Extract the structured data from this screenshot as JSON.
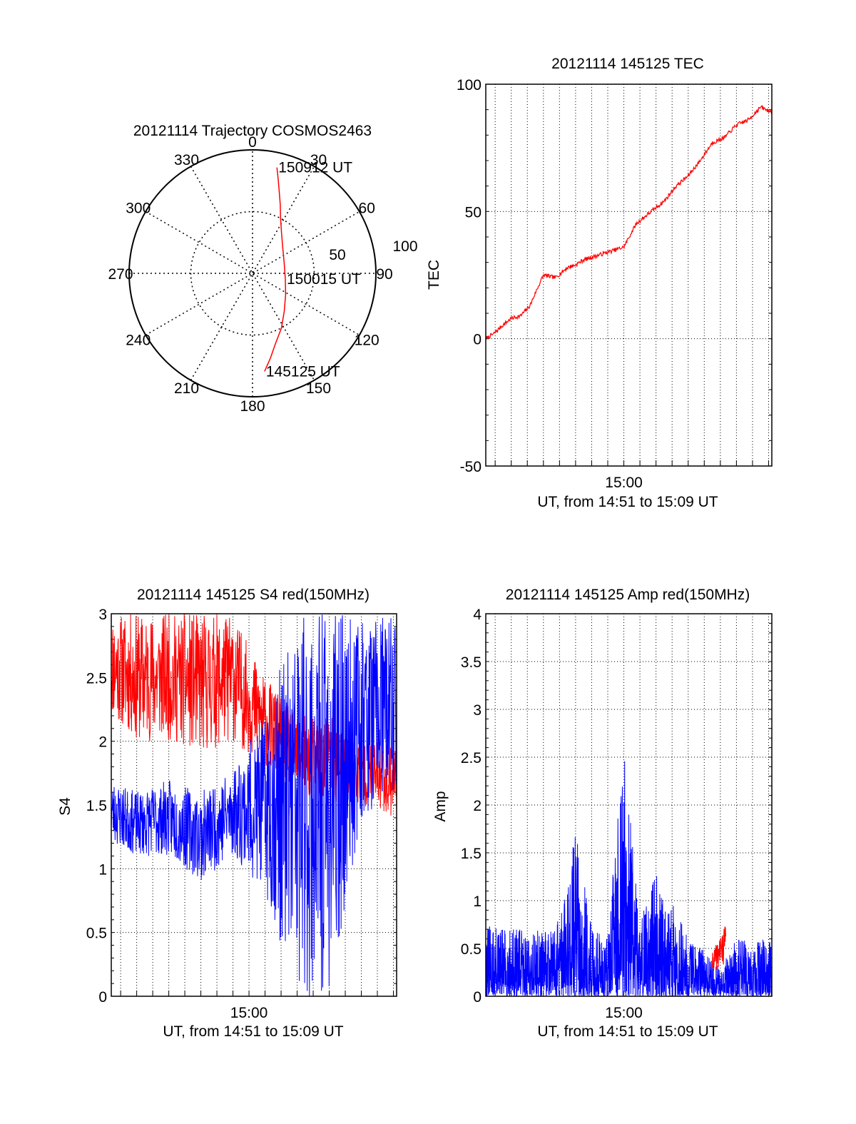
{
  "chart_data": [
    {
      "type": "polar",
      "title": "20121114 Trajectory COSMOS2463",
      "angle_labels": [
        "0",
        "30",
        "60",
        "90",
        "120",
        "150",
        "180",
        "210",
        "240",
        "270",
        "300",
        "330"
      ],
      "radius_labels": [
        "50",
        "100"
      ],
      "rlim": [
        0,
        100
      ],
      "grid": true,
      "color": "#ff0000",
      "trajectory": {
        "azimuth": [
          13,
          15,
          18,
          22,
          27,
          36,
          50,
          72,
          100,
          123,
          140,
          152,
          162,
          168,
          173
        ],
        "radius": [
          88,
          80,
          70,
          60,
          50,
          40,
          32,
          27,
          27,
          32,
          40,
          50,
          60,
          70,
          80
        ]
      },
      "labels": [
        {
          "text": "150912 UT",
          "azimuth": 13,
          "radius": 88
        },
        {
          "text": "150015 UT",
          "azimuth": 100,
          "radius": 27
        },
        {
          "text": "145125 UT",
          "azimuth": 173,
          "radius": 80
        }
      ]
    },
    {
      "type": "line",
      "title": "20121114 145125 TEC",
      "ylabel": "TEC",
      "xlabel": "UT, from 14:51 to 15:09 UT",
      "xlim": [
        "14:51:25",
        "15:09:12"
      ],
      "ylim": [
        -50,
        100
      ],
      "yticks": [
        "100",
        "50",
        "0",
        "-50"
      ],
      "xticks": [
        "15:00"
      ],
      "grid": true,
      "color": "#ff0000",
      "series": [
        {
          "x": [
            "14:51:25",
            "14:51:55",
            "14:52:25",
            "14:53:00",
            "14:53:35",
            "14:54:10",
            "14:54:30",
            "14:55:00",
            "14:55:45",
            "14:56:30",
            "14:57:00",
            "14:57:30",
            "14:58:00",
            "14:58:30",
            "14:59:00",
            "14:59:30",
            "15:00:00",
            "15:00:45",
            "15:01:30",
            "15:02:30",
            "15:03:15",
            "15:04:00",
            "15:04:45",
            "15:05:30",
            "15:06:15",
            "15:07:00",
            "15:07:45",
            "15:08:30",
            "15:09:12"
          ],
          "values": [
            0,
            2,
            5,
            8,
            9,
            13,
            18,
            25,
            24,
            28,
            29,
            31,
            32,
            33,
            34,
            35,
            36,
            45,
            49,
            54,
            60,
            64,
            70,
            77,
            79,
            84,
            86,
            91,
            89
          ]
        }
      ]
    },
    {
      "type": "line",
      "title": "20121114 145125 S4 red(150MHz)",
      "ylabel": "S4",
      "xlabel": "UT, from 14:51 to 15:09 UT",
      "xlim": [
        "14:51:25",
        "15:09:12"
      ],
      "ylim": [
        0,
        3
      ],
      "yticks": [
        "3",
        "2.5",
        "2",
        "1.5",
        "1",
        "0.5",
        "0"
      ],
      "xticks": [
        "15:00"
      ],
      "grid": true,
      "series": [
        {
          "color": "#ff0000",
          "envelope": {
            "x": [
              "14:51:25",
              "14:53:00",
              "14:55:00",
              "14:57:00",
              "14:59:00",
              "15:01:00",
              "15:03:00",
              "15:05:00",
              "15:07:00",
              "15:09:12"
            ],
            "low": [
              2.2,
              2.0,
              2.0,
              1.9,
              2.0,
              1.8,
              1.6,
              1.5,
              1.5,
              1.4
            ],
            "high": [
              3.0,
              3.0,
              3.0,
              3.0,
              3.0,
              2.5,
              2.2,
              2.2,
              2.0,
              2.0
            ]
          }
        },
        {
          "color": "#0000ff",
          "envelope": {
            "x": [
              "14:51:25",
              "14:53:00",
              "14:55:00",
              "14:57:00",
              "14:59:00",
              "15:01:00",
              "15:03:00",
              "15:05:00",
              "15:07:00",
              "15:09:12"
            ],
            "low": [
              1.2,
              1.1,
              1.1,
              0.9,
              1.1,
              0.8,
              0.0,
              0.0,
              1.4,
              1.6
            ],
            "high": [
              1.7,
              1.6,
              1.7,
              1.6,
              1.8,
              2.2,
              3.0,
              3.0,
              3.0,
              3.0
            ]
          }
        }
      ]
    },
    {
      "type": "line",
      "title": "20121114 145125 Amp red(150MHz)",
      "ylabel": "Amp",
      "xlabel": "UT, from 14:51 to 15:09 UT",
      "xlim": [
        "14:51:25",
        "15:09:12"
      ],
      "ylim": [
        0,
        4
      ],
      "yticks": [
        "4",
        "3.5",
        "3",
        "2.5",
        "2",
        "1.5",
        "1",
        "0.5",
        "0"
      ],
      "xticks": [
        "15:00"
      ],
      "grid": true,
      "series": [
        {
          "color": "#0000ff",
          "envelope": {
            "x": [
              "14:51:25",
              "14:53:00",
              "14:55:00",
              "14:56:00",
              "14:57:00",
              "14:58:00",
              "14:59:00",
              "15:00:00",
              "15:01:00",
              "15:02:00",
              "15:03:00",
              "15:04:00",
              "15:05:00",
              "15:06:00",
              "15:07:00",
              "15:08:00",
              "15:09:12"
            ],
            "low": [
              0,
              0,
              0,
              0,
              0,
              0,
              0,
              0,
              0,
              0,
              0,
              0,
              0,
              0,
              0,
              0,
              0
            ],
            "high": [
              0.75,
              0.7,
              0.7,
              0.8,
              1.8,
              0.7,
              0.7,
              2.6,
              0.8,
              1.3,
              1.0,
              0.6,
              0.5,
              0.3,
              0.6,
              0.6,
              0.6
            ]
          }
        },
        {
          "color": "#ff0000",
          "envelope": {
            "x": [
              "15:05:30",
              "15:06:00",
              "15:06:20"
            ],
            "low": [
              0.25,
              0.3,
              0.35
            ],
            "high": [
              0.45,
              0.65,
              0.75
            ]
          }
        }
      ]
    }
  ]
}
